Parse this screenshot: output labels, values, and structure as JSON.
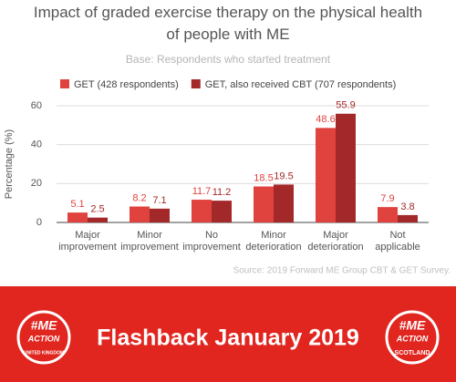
{
  "chart_data": {
    "type": "bar",
    "title": "Impact of graded exercise therapy on the physical health of people with ME",
    "subtitle": "Base: Respondents who started treatment",
    "y_label": "Percentage (%)",
    "source": "Source: 2019 Forward ME Group CBT & GET Survey.",
    "categories": [
      "Major improvement",
      "Minor improvement",
      "No improvement",
      "Minor deterioration",
      "Major deterioration",
      "Not applicable"
    ],
    "series": [
      {
        "name": "GET (428 respondents)",
        "color": "#e0433d",
        "values": [
          5.1,
          8.2,
          11.7,
          18.5,
          48.6,
          7.9
        ]
      },
      {
        "name": "GET, also received CBT (707 respondents)",
        "color": "#a3282a",
        "values": [
          2.5,
          7.1,
          11.2,
          19.5,
          55.9,
          3.8
        ]
      }
    ],
    "ylim": [
      0,
      60
    ],
    "yticks": [
      0,
      20,
      40,
      60
    ],
    "grid": true,
    "legend": "top"
  },
  "banner": {
    "text": "Flashback January 2019",
    "logos": [
      {
        "tag": "#ME",
        "name": "ACTION",
        "region": "UNITED KINGDOM"
      },
      {
        "tag": "#ME",
        "name": "ACTION",
        "region": "SCOTLAND"
      }
    ]
  }
}
